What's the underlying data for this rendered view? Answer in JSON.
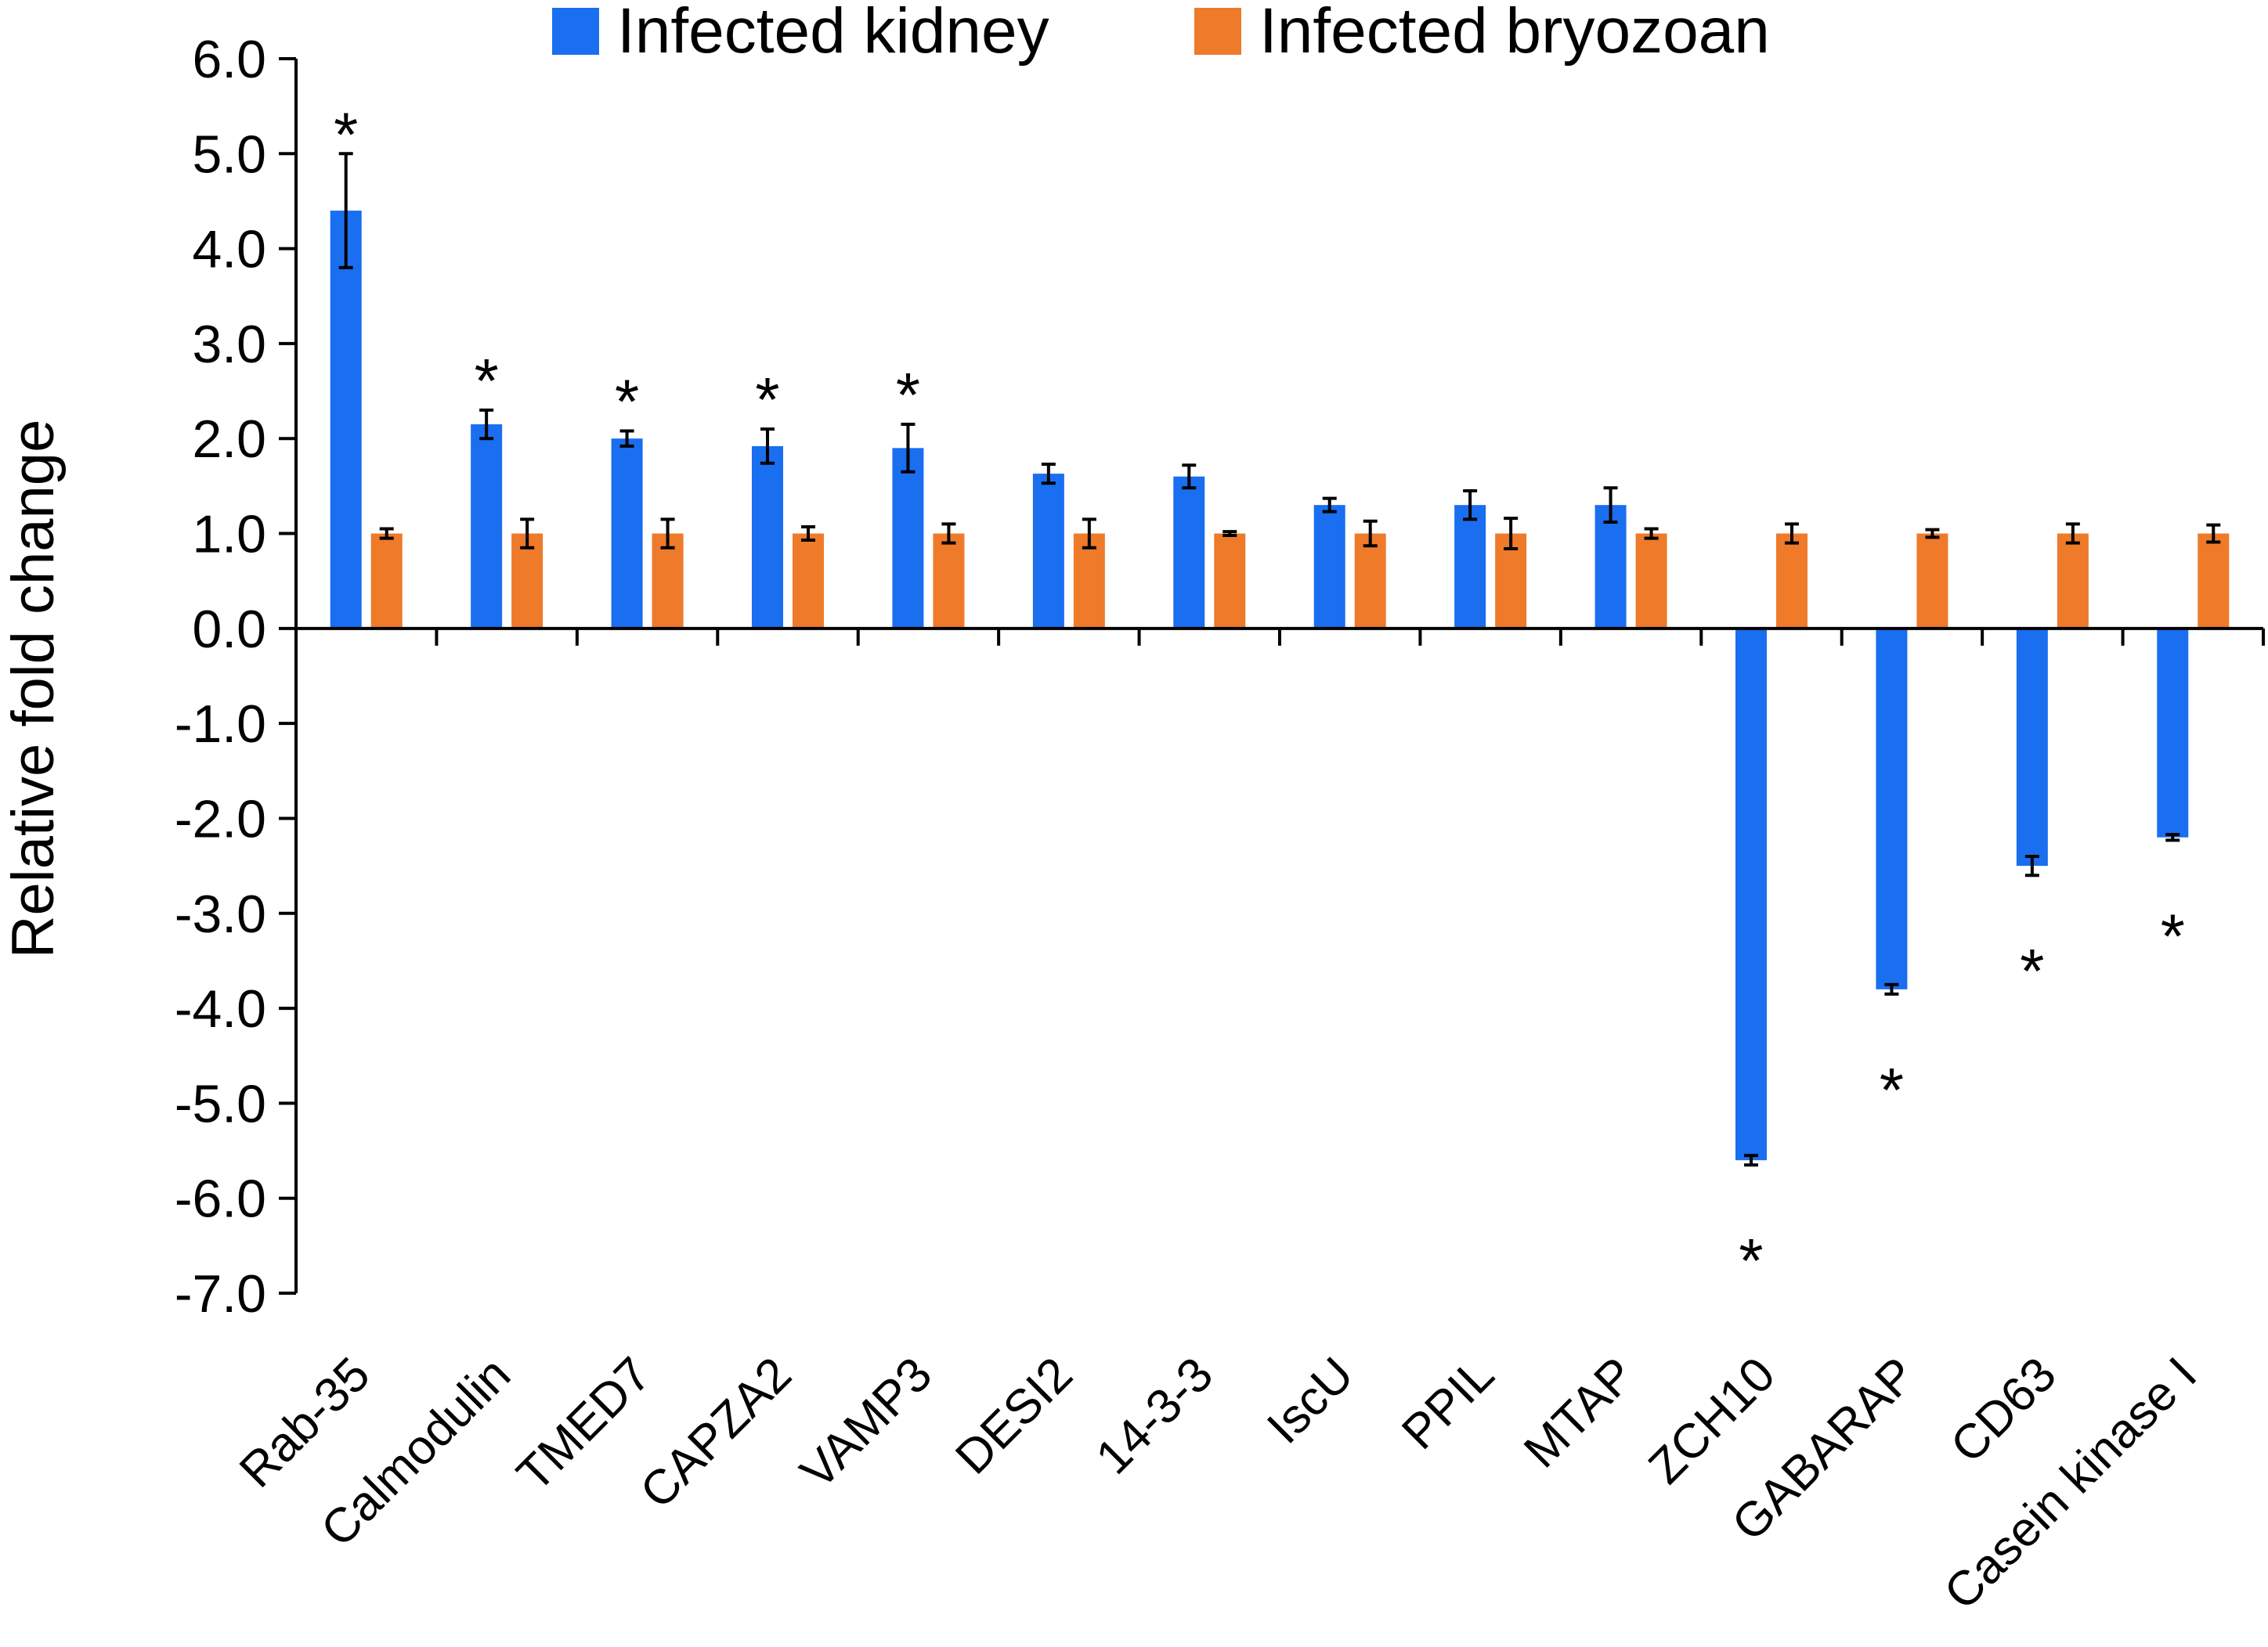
{
  "chart_data": {
    "type": "bar",
    "title": "",
    "xlabel": "",
    "ylabel": "Relative fold change",
    "ylim": [
      -7.0,
      6.0
    ],
    "yticks": [
      "6.0",
      "5.0",
      "4.0",
      "3.0",
      "2.0",
      "1.0",
      "0.0",
      "-1.0",
      "-2.0",
      "-3.0",
      "-4.0",
      "-5.0",
      "-6.0",
      "-7.0"
    ],
    "grid": false,
    "legend_position": "top",
    "categories": [
      "Rab-35",
      "Calmodulin",
      "TMED7",
      "CAPZA2",
      "VAMP3",
      "DESI2",
      "14-3-3",
      "IscU",
      "PPIL",
      "MTAP",
      "ZCH10",
      "GABARAP",
      "CD63",
      "Casein kinase I"
    ],
    "series": [
      {
        "name": "Infected kidney",
        "color": "#1a6ef0",
        "values": [
          4.4,
          2.15,
          2.0,
          1.92,
          1.9,
          1.63,
          1.6,
          1.3,
          1.3,
          1.3,
          -5.6,
          -3.8,
          -2.5,
          -2.2
        ],
        "errors": [
          0.6,
          0.15,
          0.08,
          0.18,
          0.25,
          0.1,
          0.12,
          0.07,
          0.15,
          0.18,
          0.05,
          0.05,
          0.1,
          0.03
        ]
      },
      {
        "name": "Infected bryozoan",
        "color": "#ee7a2a",
        "values": [
          1.0,
          1.0,
          1.0,
          1.0,
          1.0,
          1.0,
          1.0,
          1.0,
          1.0,
          1.0,
          1.0,
          1.0,
          1.0,
          1.0
        ],
        "errors": [
          0.05,
          0.15,
          0.15,
          0.07,
          0.1,
          0.15,
          0.02,
          0.13,
          0.16,
          0.05,
          0.1,
          0.04,
          0.1,
          0.09
        ]
      }
    ],
    "significance": {
      "symbol": "*",
      "marked_categories": [
        "Rab-35",
        "Calmodulin",
        "TMED7",
        "CAPZA2",
        "VAMP3",
        "ZCH10",
        "GABARAP",
        "CD63",
        "Casein kinase I"
      ]
    }
  }
}
